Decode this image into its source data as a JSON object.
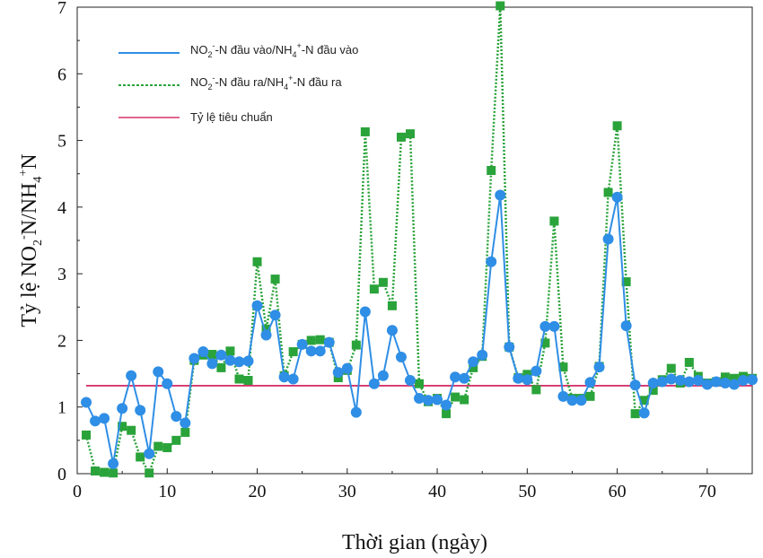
{
  "chart_data": {
    "type": "line",
    "xlabel": "Thời gian (ngày)",
    "ylabel_parts": {
      "a": "Tỷ lệ NO",
      "sub1": "2",
      "sup1": "-",
      "b": "N/NH",
      "sub2": "4",
      "sup2": "+",
      "c": "N"
    },
    "xlim": [
      0,
      75
    ],
    "ylim": [
      0,
      7
    ],
    "xticks": [
      0,
      10,
      20,
      30,
      40,
      50,
      60,
      70
    ],
    "yticks": [
      0,
      1,
      2,
      3,
      4,
      5,
      6,
      7
    ],
    "legend": [
      {
        "pre": "NO",
        "sub": "2",
        "sup": "-",
        "mid": "-N đầu vào/NH",
        "sub2": "4",
        "sup2": "+",
        "post": "-N đầu vào",
        "color": "#2f8ee5"
      },
      {
        "pre": "NO",
        "sub": "2",
        "sup": "-",
        "mid": "-N đầu ra/NH",
        "sub2": "4",
        "sup2": "+",
        "post": "-N đầu ra",
        "color": "#2aa33a"
      },
      {
        "pre": "Tỷ lệ tiêu chuẩn",
        "sub": "",
        "sup": "",
        "mid": "",
        "sub2": "",
        "sup2": "",
        "post": "",
        "color": "#d6336c"
      }
    ],
    "series": [
      {
        "name": "NO2--N đầu vào/NH4+-N đầu vào",
        "color": "#2f8ee5",
        "x": [
          1,
          2,
          3,
          4,
          5,
          6,
          7,
          8,
          9,
          10,
          11,
          12,
          13,
          14,
          15,
          16,
          17,
          18,
          19,
          20,
          21,
          22,
          23,
          24,
          25,
          26,
          27,
          28,
          29,
          30,
          31,
          32,
          33,
          34,
          35,
          36,
          37,
          38,
          39,
          40,
          41,
          42,
          43,
          44,
          45,
          46,
          47,
          48,
          49,
          50,
          51,
          52,
          53,
          54,
          55,
          56,
          57,
          58,
          59,
          60,
          61,
          62,
          63,
          64,
          65,
          66,
          67,
          68,
          69,
          70,
          71,
          72,
          73,
          74,
          75
        ],
        "values": [
          1.07,
          0.79,
          0.83,
          0.15,
          0.98,
          1.47,
          0.95,
          0.3,
          1.53,
          1.35,
          0.86,
          0.76,
          1.73,
          1.83,
          1.65,
          1.78,
          1.7,
          1.68,
          1.69,
          2.52,
          2.08,
          2.38,
          1.45,
          1.42,
          1.94,
          1.84,
          1.84,
          1.97,
          1.52,
          1.58,
          0.92,
          2.43,
          1.35,
          1.47,
          2.15,
          1.75,
          1.4,
          1.13,
          1.1,
          1.11,
          1.03,
          1.45,
          1.43,
          1.68,
          1.78,
          3.18,
          4.18,
          1.9,
          1.43,
          1.41,
          1.54,
          2.21,
          2.21,
          1.16,
          1.1,
          1.1,
          1.37,
          1.6,
          3.52,
          4.15,
          2.22,
          1.33,
          0.91,
          1.36,
          1.38,
          1.42,
          1.4,
          1.38,
          1.4,
          1.34,
          1.38,
          1.36,
          1.34,
          1.4,
          1.41
        ]
      },
      {
        "name": "NO2--N đầu ra/NH4+-N đầu ra",
        "color": "#2aa33a",
        "x": [
          1,
          2,
          3,
          4,
          5,
          6,
          7,
          8,
          9,
          10,
          11,
          12,
          13,
          14,
          15,
          16,
          17,
          18,
          19,
          20,
          21,
          22,
          23,
          24,
          25,
          26,
          27,
          28,
          29,
          30,
          31,
          32,
          33,
          34,
          35,
          36,
          37,
          38,
          39,
          40,
          41,
          42,
          43,
          44,
          45,
          46,
          47,
          48,
          49,
          50,
          51,
          52,
          53,
          54,
          55,
          56,
          57,
          58,
          59,
          60,
          61,
          62,
          63,
          64,
          65,
          66,
          67,
          68,
          69,
          70,
          71,
          72,
          73,
          74,
          75
        ],
        "values": [
          0.58,
          0.04,
          0.02,
          0.01,
          0.71,
          0.65,
          0.25,
          0.01,
          0.41,
          0.39,
          0.5,
          0.62,
          1.7,
          1.78,
          1.79,
          1.59,
          1.84,
          1.42,
          1.4,
          3.18,
          2.17,
          2.92,
          1.47,
          1.83,
          1.94,
          2.0,
          2.01,
          1.97,
          1.44,
          1.55,
          1.93,
          5.13,
          2.77,
          2.87,
          2.52,
          5.05,
          5.1,
          1.35,
          1.08,
          1.13,
          0.9,
          1.15,
          1.11,
          1.59,
          1.76,
          4.55,
          7.02,
          1.9,
          1.44,
          1.49,
          1.26,
          1.96,
          3.79,
          1.6,
          1.13,
          1.13,
          1.16,
          1.61,
          4.22,
          5.22,
          2.88,
          0.9,
          1.1,
          1.25,
          1.41,
          1.58,
          1.36,
          1.67,
          1.46,
          1.36,
          1.38,
          1.45,
          1.43,
          1.46,
          1.43
        ]
      },
      {
        "name": "Tỷ lệ tiêu chuẩn",
        "color": "#d6336c",
        "x": [
          1,
          75
        ],
        "values": [
          1.32,
          1.32
        ]
      }
    ]
  }
}
